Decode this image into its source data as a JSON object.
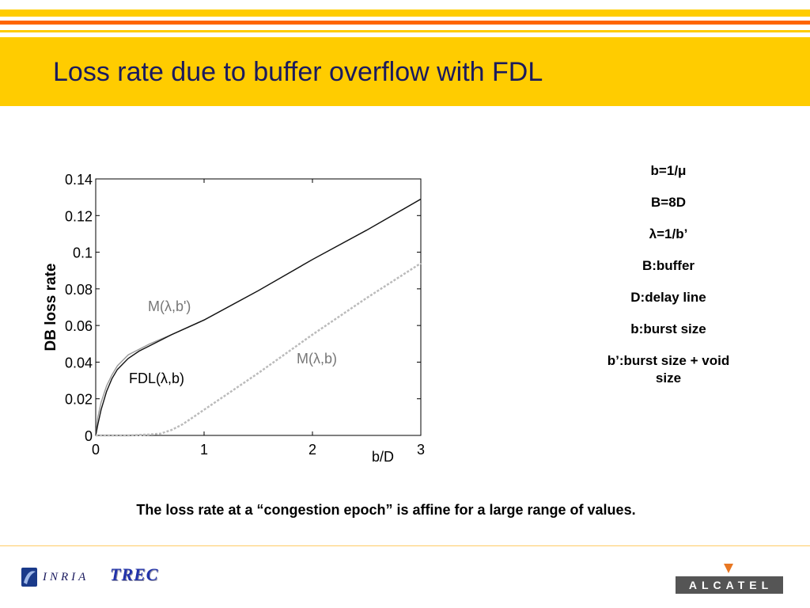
{
  "slide": {
    "title": "Loss rate due to buffer overflow with FDL",
    "caption": "The loss rate at a “congestion epoch” is affine for a large range of values.",
    "notes": [
      "b=1/μ",
      "B=8D",
      "λ=1/b’",
      "B:buffer",
      "D:delay line",
      "b:burst size",
      "b’:burst size + void size"
    ],
    "colors": {
      "band": "#ffcc00",
      "stripe_yellow": "#ffcc00",
      "stripe_orange": "#ff6600",
      "title_text": "#1a1a5e"
    }
  },
  "logos": {
    "inria": "INRIA",
    "trec": "TREC",
    "alcatel": "ALCATEL"
  },
  "chart_data": {
    "type": "line",
    "xlabel": "b/D",
    "ylabel": "DB loss rate",
    "xlim": [
      0,
      3
    ],
    "ylim": [
      0,
      0.14
    ],
    "xticks": [
      0,
      1,
      2,
      3
    ],
    "yticks": [
      0,
      0.02,
      0.04,
      0.06,
      0.08,
      0.1,
      0.12,
      0.14
    ],
    "series": [
      {
        "name": "M(λ,b')",
        "style": "solid",
        "color": "#999999",
        "x": [
          0,
          0.02,
          0.05,
          0.1,
          0.15,
          0.2,
          0.3,
          0.4,
          0.5,
          0.7,
          1.0,
          1.5,
          2.0,
          2.5,
          3.0
        ],
        "y": [
          0,
          0.01,
          0.018,
          0.027,
          0.033,
          0.038,
          0.044,
          0.047,
          0.05,
          0.055,
          0.063,
          0.079,
          0.096,
          0.112,
          0.129
        ]
      },
      {
        "name": "FDL(λ,b)",
        "style": "solid",
        "color": "#111111",
        "x": [
          0,
          0.02,
          0.05,
          0.1,
          0.15,
          0.2,
          0.3,
          0.4,
          0.5,
          0.7,
          1.0,
          1.5,
          2.0,
          2.5,
          3.0
        ],
        "y": [
          0,
          0.006,
          0.014,
          0.024,
          0.031,
          0.036,
          0.042,
          0.046,
          0.049,
          0.055,
          0.063,
          0.079,
          0.096,
          0.112,
          0.129
        ]
      },
      {
        "name": "M(λ,b)",
        "style": "dashed",
        "color": "#bbbbbb",
        "x": [
          0,
          0.3,
          0.5,
          0.6,
          0.7,
          0.8,
          0.9,
          1.0,
          1.2,
          1.5,
          2.0,
          2.5,
          3.0
        ],
        "y": [
          0,
          0,
          0.0005,
          0.001,
          0.003,
          0.006,
          0.01,
          0.014,
          0.022,
          0.034,
          0.055,
          0.075,
          0.094
        ]
      }
    ]
  }
}
